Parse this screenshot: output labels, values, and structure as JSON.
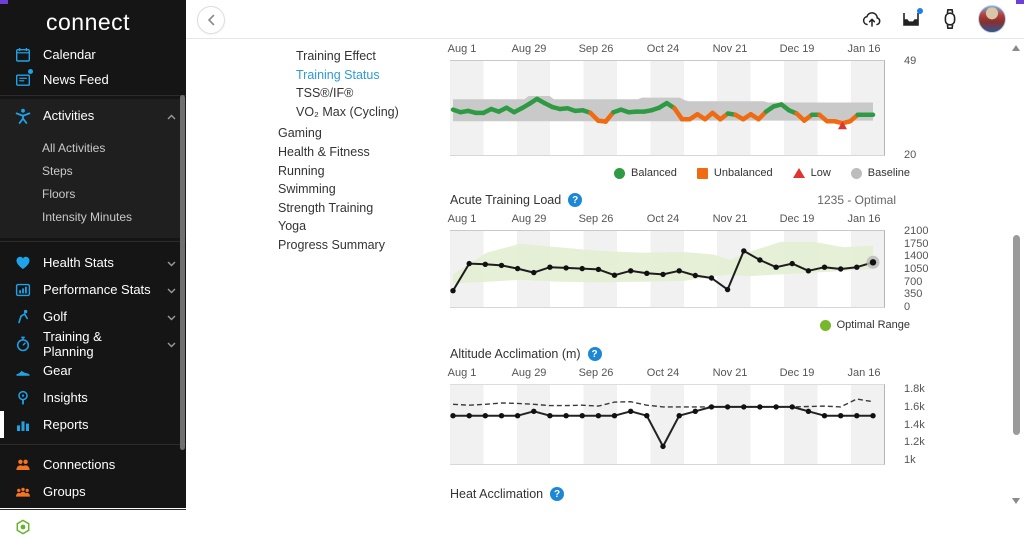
{
  "window": {
    "corner_color": "#6d3fd8"
  },
  "sidebar": {
    "logo": "connect",
    "top_items": [
      {
        "label": "Calendar"
      },
      {
        "label": "News Feed",
        "has_badge": true
      }
    ],
    "activities": {
      "label": "Activities",
      "expanded": true,
      "children": [
        {
          "label": "All Activities"
        },
        {
          "label": "Steps"
        },
        {
          "label": "Floors"
        },
        {
          "label": "Intensity Minutes"
        }
      ]
    },
    "main_items": [
      {
        "label": "Health Stats",
        "expandable": true
      },
      {
        "label": "Performance Stats",
        "expandable": true
      },
      {
        "label": "Golf",
        "expandable": true
      },
      {
        "label": "Training & Planning",
        "expandable": true
      },
      {
        "label": "Gear"
      },
      {
        "label": "Insights"
      },
      {
        "label": "Reports",
        "active": true
      }
    ],
    "social_items": [
      {
        "label": "Connections"
      },
      {
        "label": "Groups"
      }
    ],
    "bottom_items": [
      {
        "label": "Badges"
      }
    ],
    "colors": {
      "accent_blue": "#1fa3e8",
      "accent_orange": "#f4741f",
      "accent_green": "#67b32e"
    }
  },
  "nav_menu": {
    "sub_items": [
      {
        "label": "Training Effect"
      },
      {
        "label": "Training Status",
        "active": true
      },
      {
        "label": "TSS®/IF®"
      },
      {
        "label": "VO₂ Max (Cycling)"
      }
    ],
    "items": [
      {
        "label": "Gaming"
      },
      {
        "label": "Health & Fitness"
      },
      {
        "label": "Running"
      },
      {
        "label": "Swimming"
      },
      {
        "label": "Strength Training"
      },
      {
        "label": "Yoga"
      },
      {
        "label": "Progress Summary"
      }
    ],
    "active_color": "#2f9bd6"
  },
  "charts": {
    "acute_training_load": {
      "title": "Acute Training Load",
      "value_label": "1235 - Optimal"
    },
    "altitude": {
      "title": "Altitude Acclimation (m)"
    },
    "heat": {
      "title": "Heat Acclimation"
    }
  },
  "chart_data": [
    {
      "type": "line",
      "name": "training_status",
      "x_labels": [
        "Aug 1",
        "Aug 29",
        "Sep 26",
        "Oct 24",
        "Nov 21",
        "Dec 19",
        "Jan 16"
      ],
      "ylim": [
        20,
        49
      ],
      "yticks": [
        {
          "label": "49",
          "value": 49
        },
        {
          "label": "20",
          "value": 20
        }
      ],
      "values": [
        34.0,
        33.2,
        33.6,
        33.0,
        33.0,
        34.2,
        33.4,
        34.6,
        33.2,
        34.4,
        35.8,
        37.3,
        36.0,
        34.8,
        34.2,
        34.4,
        33.6,
        33.8,
        33.0,
        30.6,
        30.3,
        33.2,
        34.0,
        33.2,
        33.4,
        33.4,
        33.8,
        34.6,
        36.0,
        34.4,
        31.0,
        31.0,
        32.6,
        31.0,
        33.0,
        31.0,
        32.8,
        32.4,
        31.0,
        32.6,
        31.0,
        33.4,
        35.0,
        35.6,
        33.8,
        32.8,
        30.6,
        32.4,
        32.4,
        30.4,
        30.4,
        29.8,
        30.4,
        32.4,
        32.4,
        32.4
      ],
      "statuses": [
        "g",
        "g",
        "g",
        "g",
        "g",
        "g",
        "g",
        "g",
        "g",
        "g",
        "g",
        "g",
        "g",
        "g",
        "g",
        "g",
        "g",
        "g",
        "g",
        "u",
        "u",
        "g",
        "g",
        "g",
        "g",
        "g",
        "g",
        "g",
        "g",
        "g",
        "u",
        "u",
        "g",
        "u",
        "g",
        "u",
        "g",
        "g",
        "u",
        "g",
        "u",
        "g",
        "g",
        "g",
        "g",
        "g",
        "u",
        "g",
        "g",
        "u",
        "u",
        "l",
        "u",
        "g",
        "g",
        "g"
      ],
      "baseline_band": {
        "points": [
          [
            0,
            37.2,
            30.4
          ],
          [
            0.17,
            37.2,
            30.4
          ],
          [
            0.18,
            38.2,
            30.4
          ],
          [
            0.23,
            38.2,
            30.4
          ],
          [
            0.24,
            37.2,
            30.4
          ],
          [
            0.44,
            37.2,
            30.4
          ],
          [
            0.45,
            37.7,
            30.4
          ],
          [
            0.54,
            37.7,
            30.4
          ],
          [
            0.55,
            37.0,
            30.6
          ],
          [
            0.56,
            36.6,
            30.6
          ],
          [
            0.74,
            36.6,
            30.6
          ],
          [
            0.75,
            36.2,
            30.6
          ],
          [
            1,
            36.2,
            30.6
          ]
        ]
      },
      "legend": [
        {
          "label": "Balanced",
          "color": "#2e9b44",
          "shape": "circle"
        },
        {
          "label": "Unbalanced",
          "color": "#ef6a10",
          "shape": "square"
        },
        {
          "label": "Low",
          "color": "#e03333",
          "shape": "triangle"
        },
        {
          "label": "Baseline",
          "color": "#bdbdbd",
          "shape": "circle"
        }
      ],
      "colors": {
        "balanced": "#2e9b44",
        "unbalanced": "#ef6a10",
        "low": "#e03333",
        "baseline": "#c9c9c9"
      }
    },
    {
      "type": "line",
      "name": "acute_training_load",
      "title": "Acute Training Load",
      "current_value": "1235 - Optimal",
      "x_labels": [
        "Aug 1",
        "Aug 29",
        "Sep 26",
        "Oct 24",
        "Nov 21",
        "Dec 19",
        "Jan 16"
      ],
      "ylim": [
        0,
        2100
      ],
      "yticks": [
        {
          "label": "2100",
          "value": 2100
        },
        {
          "label": "1750",
          "value": 1750
        },
        {
          "label": "1400",
          "value": 1400
        },
        {
          "label": "1050",
          "value": 1050
        },
        {
          "label": "700",
          "value": 700
        },
        {
          "label": "350",
          "value": 350
        },
        {
          "label": "0",
          "value": 0
        }
      ],
      "values": [
        450,
        1200,
        1180,
        1150,
        1060,
        950,
        1100,
        1080,
        1060,
        1040,
        880,
        1000,
        930,
        900,
        1000,
        870,
        800,
        480,
        1550,
        1300,
        1100,
        1200,
        1000,
        1100,
        1050,
        1100,
        1235
      ],
      "optimal_band": [
        [
          0,
          650,
          900
        ],
        [
          0.08,
          700,
          1500
        ],
        [
          0.16,
          750,
          1750
        ],
        [
          0.25,
          700,
          1650
        ],
        [
          0.35,
          680,
          1550
        ],
        [
          0.45,
          700,
          1500
        ],
        [
          0.55,
          720,
          1520
        ],
        [
          0.62,
          850,
          1450
        ],
        [
          0.66,
          900,
          1300
        ],
        [
          0.7,
          850,
          1500
        ],
        [
          0.78,
          900,
          1800
        ],
        [
          0.86,
          950,
          1800
        ],
        [
          0.93,
          1000,
          1650
        ],
        [
          1,
          1050,
          1700
        ]
      ],
      "band_color": "#e3eed3",
      "legend": [
        {
          "label": "Optimal Range",
          "color": "#76b82a",
          "shape": "circle"
        }
      ]
    },
    {
      "type": "line",
      "name": "altitude_acclimation",
      "title": "Altitude Acclimation (m)",
      "x_labels": [
        "Aug 1",
        "Aug 29",
        "Sep 26",
        "Oct 24",
        "Nov 21",
        "Dec 19",
        "Jan 16"
      ],
      "ylim": [
        950,
        1850
      ],
      "yticks": [
        {
          "label": "1.8k",
          "value": 1800
        },
        {
          "label": "1.6k",
          "value": 1600
        },
        {
          "label": "1.4k",
          "value": 1400
        },
        {
          "label": "1.2k",
          "value": 1200
        },
        {
          "label": "1k",
          "value": 1000
        }
      ],
      "series": [
        {
          "name": "acclimation",
          "style": "solid",
          "values": [
            1500,
            1500,
            1500,
            1500,
            1500,
            1550,
            1500,
            1500,
            1500,
            1500,
            1500,
            1550,
            1500,
            1150,
            1500,
            1550,
            1600,
            1600,
            1600,
            1600,
            1600,
            1600,
            1550,
            1500,
            1500,
            1500,
            1500
          ]
        },
        {
          "name": "reference",
          "style": "dashed",
          "values": [
            1630,
            1620,
            1630,
            1645,
            1640,
            1630,
            1615,
            1615,
            1620,
            1610,
            1655,
            1660,
            1620,
            1600,
            1600,
            1600,
            1600,
            1600,
            1600,
            1600,
            1600,
            1600,
            1605,
            1610,
            1600,
            1690,
            1660
          ]
        }
      ]
    }
  ]
}
